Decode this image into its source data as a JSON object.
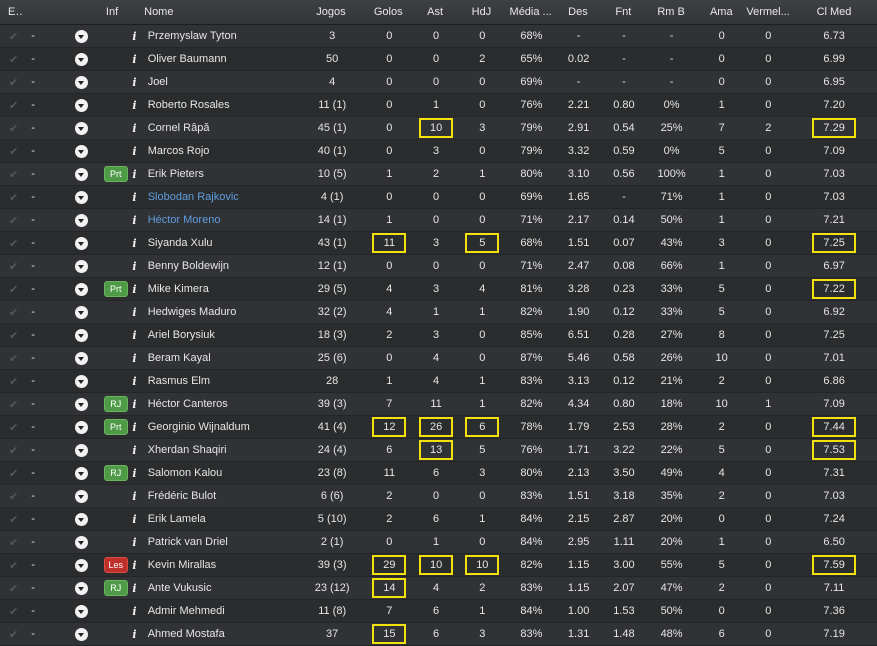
{
  "headers": {
    "esc": "Esc",
    "inf": "Inf",
    "nome": "Nome",
    "jogos": "Jogos",
    "golos": "Golos",
    "ast": "Ast",
    "hdj": "HdJ",
    "media": "Média ...",
    "des": "Des",
    "fnt": "Fnt",
    "rmb": "Rm B",
    "ama": "Ama",
    "vermel": "Vermel...",
    "clmed": "Cl Med"
  },
  "icons": {
    "check": "check-icon",
    "dropdown": "dropdown-arrow-icon",
    "info": "info-icon"
  },
  "colors": {
    "highlight": "#f2e10c",
    "link": "#5e9ee0",
    "badge_green": "#4f9a47",
    "badge_red": "#c0302a"
  },
  "rows": [
    {
      "check": "✔",
      "dash": "-",
      "badge": "",
      "info": "i",
      "name": "Przemyslaw Tyton",
      "link": false,
      "jogos": "3",
      "golos": "0",
      "ast": "0",
      "hdj": "0",
      "media": "68%",
      "des": "-",
      "fnt": "-",
      "rmb": "-",
      "ama": "0",
      "vermel": "0",
      "clmed": "6.73",
      "hl": []
    },
    {
      "check": "✔",
      "dash": "-",
      "badge": "",
      "info": "i",
      "name": "Oliver Baumann",
      "link": false,
      "jogos": "50",
      "golos": "0",
      "ast": "0",
      "hdj": "2",
      "media": "65%",
      "des": "0.02",
      "fnt": "-",
      "rmb": "-",
      "ama": "0",
      "vermel": "0",
      "clmed": "6.99",
      "hl": []
    },
    {
      "check": "✔",
      "dash": "-",
      "badge": "",
      "info": "i",
      "name": "Joel",
      "link": false,
      "jogos": "4",
      "golos": "0",
      "ast": "0",
      "hdj": "0",
      "media": "69%",
      "des": "-",
      "fnt": "-",
      "rmb": "-",
      "ama": "0",
      "vermel": "0",
      "clmed": "6.95",
      "hl": []
    },
    {
      "check": "✔",
      "dash": "-",
      "badge": "",
      "info": "i",
      "name": "Roberto Rosales",
      "link": false,
      "jogos": "11 (1)",
      "golos": "0",
      "ast": "1",
      "hdj": "0",
      "media": "76%",
      "des": "2.21",
      "fnt": "0.80",
      "rmb": "0%",
      "ama": "1",
      "vermel": "0",
      "clmed": "7.20",
      "hl": []
    },
    {
      "check": "✔",
      "dash": "-",
      "badge": "",
      "info": "i",
      "name": "Cornel Râpă",
      "link": false,
      "jogos": "45 (1)",
      "golos": "0",
      "ast": "10",
      "hdj": "3",
      "media": "79%",
      "des": "2.91",
      "fnt": "0.54",
      "rmb": "25%",
      "ama": "7",
      "vermel": "2",
      "clmed": "7.29",
      "hl": [
        "ast",
        "clmed"
      ]
    },
    {
      "check": "✔",
      "dash": "-",
      "badge": "",
      "info": "i",
      "name": "Marcos Rojo",
      "link": false,
      "jogos": "40 (1)",
      "golos": "0",
      "ast": "3",
      "hdj": "0",
      "media": "79%",
      "des": "3.32",
      "fnt": "0.59",
      "rmb": "0%",
      "ama": "5",
      "vermel": "0",
      "clmed": "7.09",
      "hl": []
    },
    {
      "check": "✔",
      "dash": "-",
      "badge": "Prt",
      "info": "i",
      "name": "Erik Pieters",
      "link": false,
      "jogos": "10 (5)",
      "golos": "1",
      "ast": "2",
      "hdj": "1",
      "media": "80%",
      "des": "3.10",
      "fnt": "0.56",
      "rmb": "100%",
      "ama": "1",
      "vermel": "0",
      "clmed": "7.03",
      "hl": []
    },
    {
      "check": "✔",
      "dash": "-",
      "badge": "",
      "info": "i",
      "name": "Slobodan Rajkovic",
      "link": true,
      "jogos": "4 (1)",
      "golos": "0",
      "ast": "0",
      "hdj": "0",
      "media": "69%",
      "des": "1.65",
      "fnt": "-",
      "rmb": "71%",
      "ama": "1",
      "vermel": "0",
      "clmed": "7.03",
      "hl": []
    },
    {
      "check": "✔",
      "dash": "-",
      "badge": "",
      "info": "i",
      "name": "Héctor Moreno",
      "link": true,
      "jogos": "14 (1)",
      "golos": "1",
      "ast": "0",
      "hdj": "0",
      "media": "71%",
      "des": "2.17",
      "fnt": "0.14",
      "rmb": "50%",
      "ama": "1",
      "vermel": "0",
      "clmed": "7.21",
      "hl": []
    },
    {
      "check": "✔",
      "dash": "-",
      "badge": "",
      "info": "i",
      "name": "Siyanda Xulu",
      "link": false,
      "jogos": "43 (1)",
      "golos": "11",
      "ast": "3",
      "hdj": "5",
      "media": "68%",
      "des": "1.51",
      "fnt": "0.07",
      "rmb": "43%",
      "ama": "3",
      "vermel": "0",
      "clmed": "7.25",
      "hl": [
        "golos",
        "hdj",
        "clmed"
      ]
    },
    {
      "check": "✔",
      "dash": "-",
      "badge": "",
      "info": "i",
      "name": "Benny Boldewijn",
      "link": false,
      "jogos": "12 (1)",
      "golos": "0",
      "ast": "0",
      "hdj": "0",
      "media": "71%",
      "des": "2.47",
      "fnt": "0.08",
      "rmb": "66%",
      "ama": "1",
      "vermel": "0",
      "clmed": "6.97",
      "hl": []
    },
    {
      "check": "✔",
      "dash": "-",
      "badge": "Prt",
      "info": "i",
      "name": "Mike Kimera",
      "link": false,
      "jogos": "29 (5)",
      "golos": "4",
      "ast": "3",
      "hdj": "4",
      "media": "81%",
      "des": "3.28",
      "fnt": "0.23",
      "rmb": "33%",
      "ama": "5",
      "vermel": "0",
      "clmed": "7.22",
      "hl": [
        "clmed"
      ]
    },
    {
      "check": "✔",
      "dash": "-",
      "badge": "",
      "info": "i",
      "name": "Hedwiges Maduro",
      "link": false,
      "jogos": "32 (2)",
      "golos": "4",
      "ast": "1",
      "hdj": "1",
      "media": "82%",
      "des": "1.90",
      "fnt": "0.12",
      "rmb": "33%",
      "ama": "5",
      "vermel": "0",
      "clmed": "6.92",
      "hl": []
    },
    {
      "check": "✔",
      "dash": "-",
      "badge": "",
      "info": "i",
      "name": "Ariel Borysiuk",
      "link": false,
      "jogos": "18 (3)",
      "golos": "2",
      "ast": "3",
      "hdj": "0",
      "media": "85%",
      "des": "6.51",
      "fnt": "0.28",
      "rmb": "27%",
      "ama": "8",
      "vermel": "0",
      "clmed": "7.25",
      "hl": []
    },
    {
      "check": "✔",
      "dash": "-",
      "badge": "",
      "info": "i",
      "name": "Beram Kayal",
      "link": false,
      "jogos": "25 (6)",
      "golos": "0",
      "ast": "4",
      "hdj": "0",
      "media": "87%",
      "des": "5.46",
      "fnt": "0.58",
      "rmb": "26%",
      "ama": "10",
      "vermel": "0",
      "clmed": "7.01",
      "hl": []
    },
    {
      "check": "✔",
      "dash": "-",
      "badge": "",
      "info": "i",
      "name": "Rasmus Elm",
      "link": false,
      "jogos": "28",
      "golos": "1",
      "ast": "4",
      "hdj": "1",
      "media": "83%",
      "des": "3.13",
      "fnt": "0.12",
      "rmb": "21%",
      "ama": "2",
      "vermel": "0",
      "clmed": "6.86",
      "hl": []
    },
    {
      "check": "✔",
      "dash": "-",
      "badge": "RJ",
      "info": "i",
      "name": "Héctor Canteros",
      "link": false,
      "jogos": "39 (3)",
      "golos": "7",
      "ast": "11",
      "hdj": "1",
      "media": "82%",
      "des": "4.34",
      "fnt": "0.80",
      "rmb": "18%",
      "ama": "10",
      "vermel": "1",
      "clmed": "7.09",
      "hl": []
    },
    {
      "check": "✔",
      "dash": "-",
      "badge": "Prt",
      "info": "i",
      "name": "Georginio Wijnaldum",
      "link": false,
      "jogos": "41 (4)",
      "golos": "12",
      "ast": "26",
      "hdj": "6",
      "media": "78%",
      "des": "1.79",
      "fnt": "2.53",
      "rmb": "28%",
      "ama": "2",
      "vermel": "0",
      "clmed": "7.44",
      "hl": [
        "golos",
        "ast",
        "hdj",
        "clmed"
      ]
    },
    {
      "check": "✔",
      "dash": "-",
      "badge": "",
      "info": "i",
      "name": "Xherdan Shaqiri",
      "link": false,
      "jogos": "24 (4)",
      "golos": "6",
      "ast": "13",
      "hdj": "5",
      "media": "76%",
      "des": "1.71",
      "fnt": "3.22",
      "rmb": "22%",
      "ama": "5",
      "vermel": "0",
      "clmed": "7.53",
      "hl": [
        "ast",
        "clmed"
      ]
    },
    {
      "check": "✔",
      "dash": "-",
      "badge": "RJ",
      "info": "i",
      "name": "Salomon Kalou",
      "link": false,
      "jogos": "23 (8)",
      "golos": "11",
      "ast": "6",
      "hdj": "3",
      "media": "80%",
      "des": "2.13",
      "fnt": "3.50",
      "rmb": "49%",
      "ama": "4",
      "vermel": "0",
      "clmed": "7.31",
      "hl": []
    },
    {
      "check": "✔",
      "dash": "-",
      "badge": "",
      "info": "i",
      "name": "Frédéric Bulot",
      "link": false,
      "jogos": "6 (6)",
      "golos": "2",
      "ast": "0",
      "hdj": "0",
      "media": "83%",
      "des": "1.51",
      "fnt": "3.18",
      "rmb": "35%",
      "ama": "2",
      "vermel": "0",
      "clmed": "7.03",
      "hl": []
    },
    {
      "check": "✔",
      "dash": "-",
      "badge": "",
      "info": "i",
      "name": "Erik Lamela",
      "link": false,
      "jogos": "5 (10)",
      "golos": "2",
      "ast": "6",
      "hdj": "1",
      "media": "84%",
      "des": "2.15",
      "fnt": "2.87",
      "rmb": "20%",
      "ama": "0",
      "vermel": "0",
      "clmed": "7.24",
      "hl": []
    },
    {
      "check": "✔",
      "dash": "-",
      "badge": "",
      "info": "i",
      "name": "Patrick van Driel",
      "link": false,
      "jogos": "2 (1)",
      "golos": "0",
      "ast": "1",
      "hdj": "0",
      "media": "84%",
      "des": "2.95",
      "fnt": "1.11",
      "rmb": "20%",
      "ama": "1",
      "vermel": "0",
      "clmed": "6.50",
      "hl": []
    },
    {
      "check": "✔",
      "dash": "-",
      "badge": "Les",
      "info": "i",
      "name": "Kevin Mirallas",
      "link": false,
      "jogos": "39 (3)",
      "golos": "29",
      "ast": "10",
      "hdj": "10",
      "media": "82%",
      "des": "1.15",
      "fnt": "3.00",
      "rmb": "55%",
      "ama": "5",
      "vermel": "0",
      "clmed": "7.59",
      "hl": [
        "golos",
        "ast",
        "hdj",
        "clmed"
      ]
    },
    {
      "check": "✔",
      "dash": "-",
      "badge": "RJ",
      "info": "i",
      "name": "Ante Vukusic",
      "link": false,
      "jogos": "23 (12)",
      "golos": "14",
      "ast": "4",
      "hdj": "2",
      "media": "83%",
      "des": "1.15",
      "fnt": "2.07",
      "rmb": "47%",
      "ama": "2",
      "vermel": "0",
      "clmed": "7.11",
      "hl": [
        "golos"
      ]
    },
    {
      "check": "✔",
      "dash": "-",
      "badge": "",
      "info": "i",
      "name": "Admir Mehmedi",
      "link": false,
      "jogos": "11 (8)",
      "golos": "7",
      "ast": "6",
      "hdj": "1",
      "media": "84%",
      "des": "1.00",
      "fnt": "1.53",
      "rmb": "50%",
      "ama": "0",
      "vermel": "0",
      "clmed": "7.36",
      "hl": []
    },
    {
      "check": "✔",
      "dash": "-",
      "badge": "",
      "info": "i",
      "name": "Ahmed Mostafa",
      "link": false,
      "jogos": "37",
      "golos": "15",
      "ast": "6",
      "hdj": "3",
      "media": "83%",
      "des": "1.31",
      "fnt": "1.48",
      "rmb": "48%",
      "ama": "6",
      "vermel": "0",
      "clmed": "7.19",
      "hl": [
        "golos"
      ]
    }
  ]
}
